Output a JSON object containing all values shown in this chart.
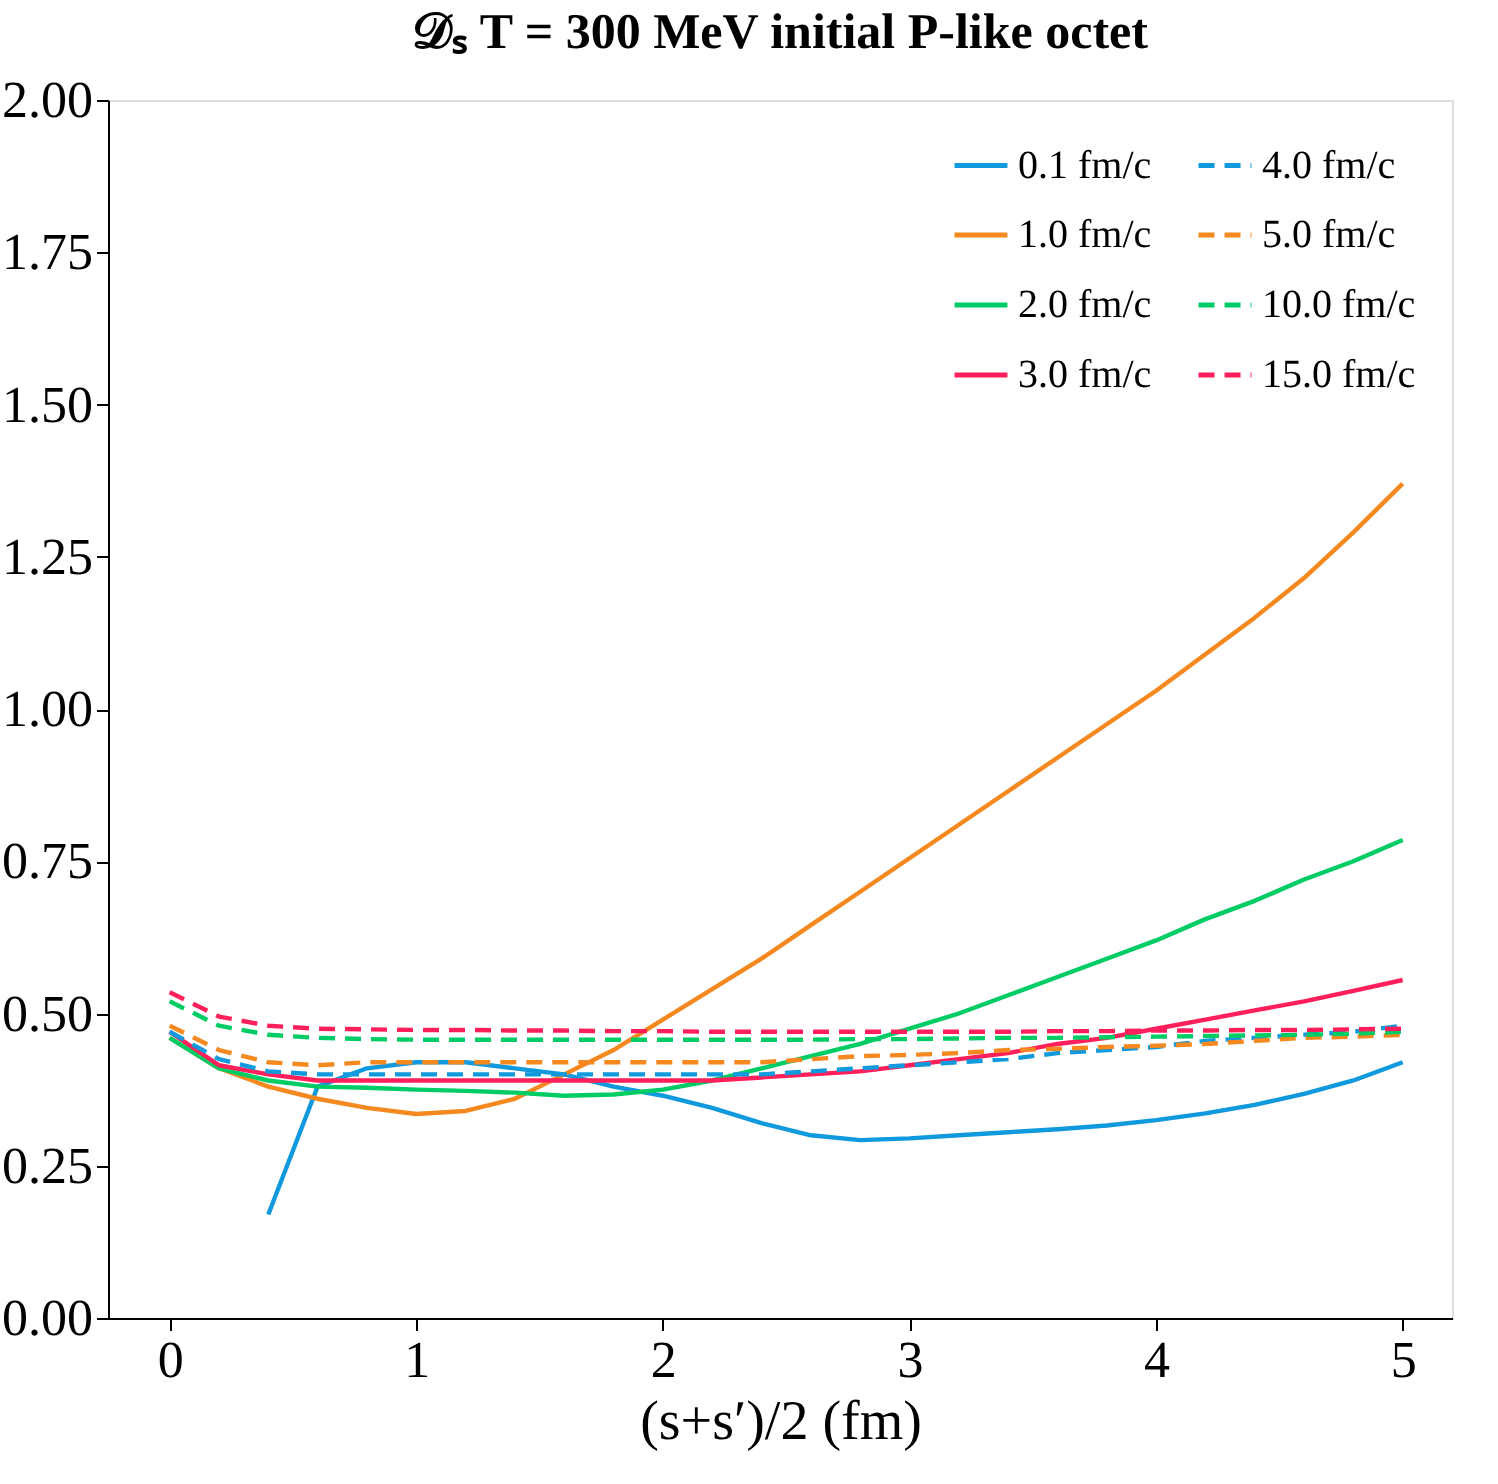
{
  "chart_data": {
    "type": "line",
    "title": "𝒟ₛ  T = 300 MeV    initial P-like octet",
    "xlabel": "(s+s′)/2 (fm)",
    "xlim": [
      -0.25,
      5.2
    ],
    "ylim": [
      0,
      2
    ],
    "xticks": [
      0,
      1,
      2,
      3,
      4,
      5
    ],
    "yticks": [
      {
        "value": 0,
        "label": "0.00"
      },
      {
        "value": 0.25,
        "label": "0.25"
      },
      {
        "value": 0.5,
        "label": "0.50"
      },
      {
        "value": 0.75,
        "label": "0.75"
      },
      {
        "value": 1,
        "label": "1.00"
      },
      {
        "value": 1.25,
        "label": "1.25"
      },
      {
        "value": 1.5,
        "label": "1.50"
      },
      {
        "value": 1.75,
        "label": "1.75"
      },
      {
        "value": 2,
        "label": "2.00"
      }
    ],
    "grid": false,
    "legend": "top right",
    "marker": "none",
    "x": [
      0,
      0.2,
      0.4,
      0.6,
      0.8,
      1.0,
      1.2,
      1.4,
      1.6,
      1.8,
      2.0,
      2.2,
      2.4,
      2.6,
      2.8,
      3.0,
      3.2,
      3.4,
      3.6,
      3.8,
      4.0,
      4.2,
      4.4,
      4.6,
      4.8,
      5.0
    ],
    "series": [
      {
        "name": "0.1 fm/c",
        "color": "#1199dd",
        "line_style": "solid",
        "values": [
          null,
          null,
          0.17,
          0.38,
          0.41,
          0.42,
          0.42,
          0.41,
          0.4,
          0.38,
          0.365,
          0.345,
          0.32,
          0.3,
          0.292,
          0.295,
          0.3,
          0.305,
          0.31,
          0.316,
          0.325,
          0.336,
          0.35,
          0.368,
          0.39,
          0.42
        ]
      },
      {
        "name": "1.0 fm/c",
        "color": "#f5891f",
        "line_style": "solid",
        "values": [
          0.46,
          0.41,
          0.38,
          0.36,
          0.345,
          0.335,
          0.34,
          0.36,
          0.4,
          0.44,
          0.49,
          0.54,
          0.59,
          0.645,
          0.7,
          0.755,
          0.81,
          0.865,
          0.92,
          0.975,
          1.03,
          1.09,
          1.15,
          1.215,
          1.29,
          1.37
        ]
      },
      {
        "name": "2.0 fm/c",
        "color": "#00cc66",
        "line_style": "solid",
        "values": [
          0.46,
          0.41,
          0.39,
          0.38,
          0.378,
          0.375,
          0.373,
          0.37,
          0.365,
          0.367,
          0.375,
          0.39,
          0.41,
          0.43,
          0.45,
          0.475,
          0.5,
          0.53,
          0.56,
          0.59,
          0.62,
          0.655,
          0.685,
          0.72,
          0.75,
          0.785
        ]
      },
      {
        "name": "3.0 fm/c",
        "color": "#ff1f5b",
        "line_style": "solid",
        "values": [
          0.47,
          0.415,
          0.4,
          0.39,
          0.39,
          0.39,
          0.39,
          0.39,
          0.39,
          0.39,
          0.39,
          0.39,
          0.395,
          0.4,
          0.405,
          0.415,
          0.425,
          0.435,
          0.45,
          0.46,
          0.475,
          0.49,
          0.505,
          0.52,
          0.537,
          0.555
        ]
      },
      {
        "name": "4.0 fm/c",
        "color": "#1199dd",
        "line_style": "dashed",
        "values": [
          0.47,
          0.425,
          0.405,
          0.4,
          0.4,
          0.4,
          0.4,
          0.4,
          0.4,
          0.4,
          0.4,
          0.4,
          0.4,
          0.405,
          0.41,
          0.415,
          0.42,
          0.425,
          0.435,
          0.44,
          0.445,
          0.455,
          0.46,
          0.465,
          0.47,
          0.48
        ]
      },
      {
        "name": "5.0 fm/c",
        "color": "#f5891f",
        "line_style": "dashed",
        "values": [
          0.48,
          0.44,
          0.42,
          0.415,
          0.42,
          0.42,
          0.42,
          0.42,
          0.42,
          0.42,
          0.42,
          0.42,
          0.42,
          0.425,
          0.43,
          0.432,
          0.435,
          0.44,
          0.442,
          0.445,
          0.447,
          0.45,
          0.455,
          0.46,
          0.462,
          0.465
        ]
      },
      {
        "name": "10.0 fm/c",
        "color": "#00cc66",
        "line_style": "dashed",
        "values": [
          0.52,
          0.48,
          0.465,
          0.46,
          0.458,
          0.457,
          0.457,
          0.457,
          0.457,
          0.457,
          0.457,
          0.457,
          0.457,
          0.457,
          0.458,
          0.458,
          0.459,
          0.46,
          0.46,
          0.461,
          0.462,
          0.463,
          0.464,
          0.465,
          0.467,
          0.47
        ]
      },
      {
        "name": "15.0 fm/c",
        "color": "#ff1f5b",
        "line_style": "dashed",
        "values": [
          0.535,
          0.495,
          0.48,
          0.475,
          0.474,
          0.473,
          0.473,
          0.472,
          0.472,
          0.471,
          0.471,
          0.47,
          0.47,
          0.47,
          0.47,
          0.47,
          0.47,
          0.47,
          0.471,
          0.471,
          0.472,
          0.472,
          0.473,
          0.473,
          0.474,
          0.475
        ]
      }
    ]
  }
}
